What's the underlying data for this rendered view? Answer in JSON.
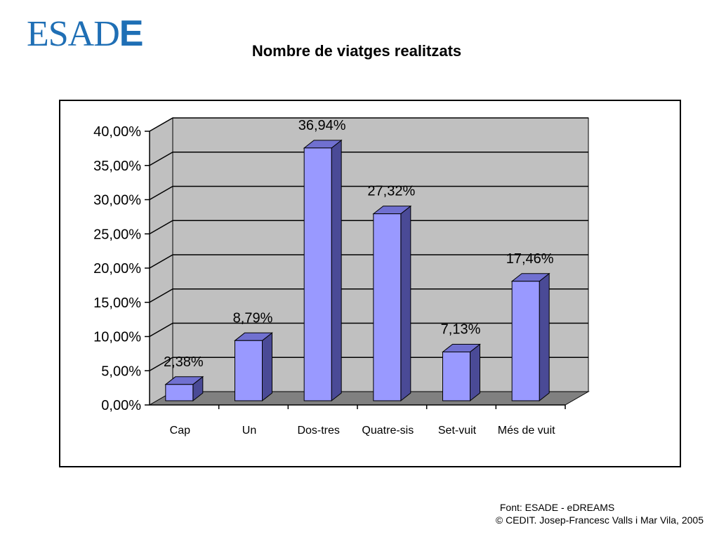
{
  "logo": {
    "text_main": "ESAD",
    "text_last": "E",
    "color": "#1f6fb5"
  },
  "title": "Nombre de viatges realitzats",
  "chart_data": {
    "type": "bar",
    "title": "Nombre de viatges realitzats",
    "xlabel": "",
    "ylabel": "",
    "categories": [
      "Cap",
      "Un",
      "Dos-tres",
      "Quatre-sis",
      "Set-vuit",
      "Més de vuit"
    ],
    "values": [
      2.38,
      8.79,
      36.94,
      27.32,
      7.13,
      17.46
    ],
    "value_labels": [
      "2,38%",
      "8,79%",
      "36,94%",
      "27,32%",
      "7,13%",
      "17,46%"
    ],
    "ylim": [
      0,
      40
    ],
    "yticks": [
      "0,00%",
      "5,00%",
      "10,00%",
      "15,00%",
      "20,00%",
      "25,00%",
      "30,00%",
      "35,00%",
      "40,00%"
    ],
    "grid": true,
    "legend": "none",
    "style": "3d",
    "colors": {
      "bar_front": "#9999ff",
      "bar_side": "#4a4a96",
      "bar_top": "#7070d0",
      "wall": "#c0c0c0",
      "floor": "#808080"
    }
  },
  "footer": {
    "source": "Font: ESADE - eDREAMS",
    "copyright": "© CEDIT. Josep-Francesc Valls i Mar Vila, 2005"
  }
}
